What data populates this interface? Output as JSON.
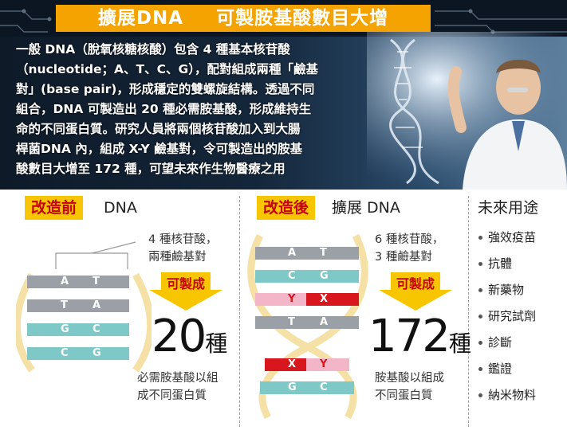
{
  "header": {
    "title_part1": "擴展DNA",
    "title_part2": "可製胺基酸數目大增"
  },
  "intro": {
    "lines": [
      "一般 DNA（脫氧核糖核酸）包含 4 種基本核苷酸",
      "（nucleotide；A、T、C、G），配對組成兩種「鹼基",
      "對」(base pair)，形成穩定的雙螺旋結構。透過不同",
      "組合，DNA 可製造出 20 種必需胺基酸，形成維持生",
      "命的不同蛋白質。研究人員將兩個核苷酸加入到大腸",
      "桿菌DNA 內，組成 X-Y 鹼基對，令可製造出的胺基",
      "酸數目大增至 172 種，可望未來作生物醫療之用"
    ]
  },
  "before": {
    "tag": "改造前",
    "label": "DNA",
    "note_line1": "4 種核苷酸，",
    "note_line2": "兩種鹼基對",
    "arrow_label": "可製成",
    "count": "20",
    "unit": "種",
    "desc_line1": "必需胺基酸以組",
    "desc_line2": "成不同蛋白質",
    "pairs": [
      {
        "left": "A",
        "right": "T"
      },
      {
        "left": "T",
        "right": "A"
      },
      {
        "left": "G",
        "right": "C"
      },
      {
        "left": "C",
        "right": "G"
      }
    ]
  },
  "after": {
    "tag": "改造後",
    "label": "擴展 DNA",
    "note_line1": "6 種核苷酸，",
    "note_line2": "3 種鹼基對",
    "arrow_label": "可製成",
    "count": "172",
    "unit": "種",
    "desc_line1": "胺基酸以組成",
    "desc_line2": "不同蛋白質",
    "pairs_top": [
      {
        "left": "A",
        "right": "T"
      },
      {
        "left": "C",
        "right": "G"
      },
      {
        "left": "Y",
        "right": "X"
      },
      {
        "left": "T",
        "right": "A"
      }
    ],
    "pairs_bottom": [
      {
        "left": "X",
        "right": "Y"
      },
      {
        "left": "G",
        "right": "C"
      }
    ]
  },
  "uses": {
    "title": "未來用途",
    "items": [
      "強效疫苗",
      "抗體",
      "新藥物",
      "研究試劑",
      "診斷",
      "鑑證",
      "納米物料"
    ]
  },
  "colors": {
    "accent": "#f4a300",
    "tag_yellow": "#f7c600",
    "tag_red": "#c8000a",
    "pair_gray": "#9aa0a6",
    "pair_teal": "#7ec8c8",
    "pair_pink": "#f2b6c8",
    "pair_red": "#d7161d"
  }
}
